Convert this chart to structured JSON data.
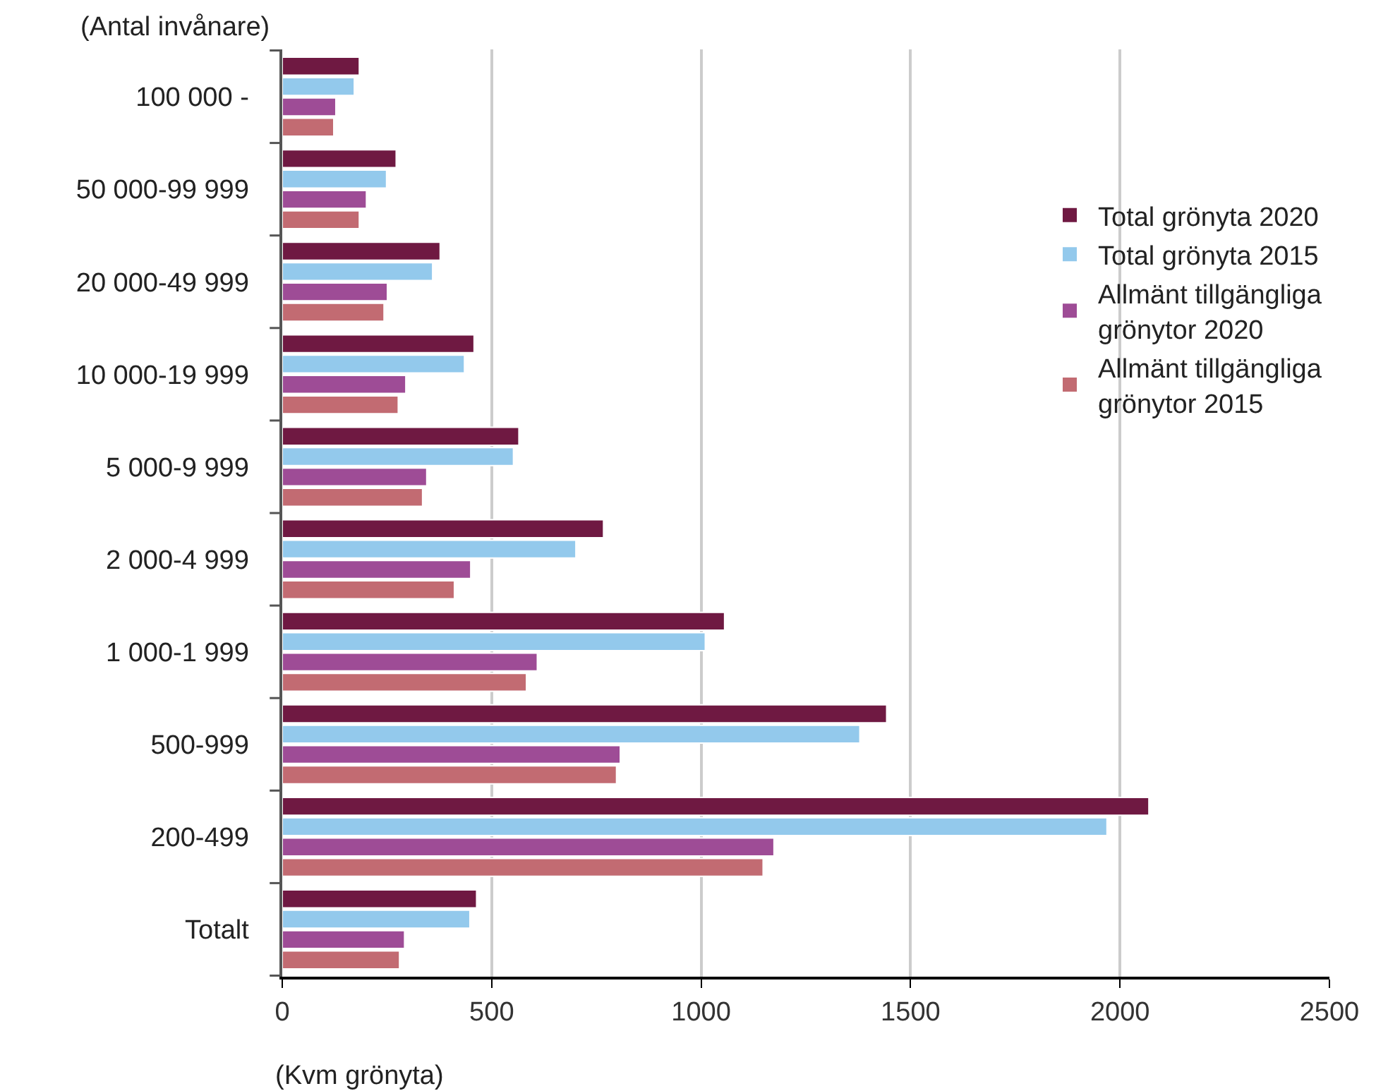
{
  "chart_data": {
    "type": "bar",
    "orientation": "horizontal",
    "xlabel": "(Kvm grönyta)",
    "ylabel": "(Antal invånare)",
    "categories": [
      "100 000 -",
      "50 000-99 999",
      "20 000-49 999",
      "10 000-19 999",
      "5 000-9 999",
      "2 000-4 999",
      "1 000-1 999",
      "500-999",
      "200-499",
      "Totalt"
    ],
    "series": [
      {
        "name": "Total grönyta 2020",
        "color": "#6f1942",
        "values": [
          184,
          272,
          377,
          458,
          565,
          767,
          1056,
          1443,
          2069,
          464
        ]
      },
      {
        "name": "Total grönyta 2015",
        "color": "#93c9ec",
        "values": [
          172,
          249,
          359,
          435,
          552,
          701,
          1010,
          1379,
          1969,
          448
        ]
      },
      {
        "name": "Allmänt tillgängliga grönytor 2020",
        "color": "#9e4c96",
        "values": [
          128,
          201,
          251,
          295,
          345,
          450,
          609,
          807,
          1174,
          292
        ]
      },
      {
        "name": "Allmänt tillgängliga grönytor 2015",
        "color": "#c26b72",
        "values": [
          123,
          184,
          243,
          277,
          335,
          411,
          583,
          798,
          1148,
          280
        ]
      }
    ],
    "xlim": [
      0,
      2500
    ],
    "xticks": [
      0,
      500,
      1000,
      1500,
      2000,
      2500
    ],
    "grid": "x",
    "legend": "top right"
  }
}
